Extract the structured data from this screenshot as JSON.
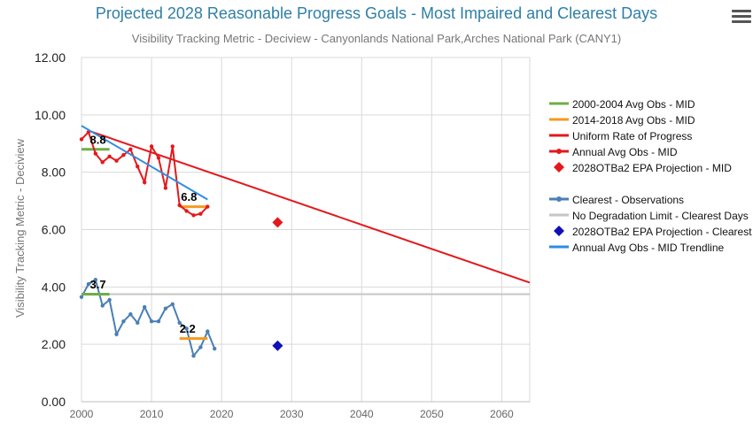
{
  "chart_data": {
    "type": "line",
    "title": "Projected 2028 Reasonable Progress Goals - Most Impaired and Clearest Days",
    "subtitle": "Visibility Tracking Metric - Deciview - Canyonlands National Park,Arches National Park (CANY1)",
    "ylabel": "Visibility Tracking Metric - Deciview",
    "xlabel": "",
    "xlim": [
      2000,
      2064
    ],
    "ylim": [
      0,
      12
    ],
    "xticks": [
      2000,
      2010,
      2020,
      2030,
      2040,
      2050,
      2060
    ],
    "yticks": [
      "0.00",
      "2.00",
      "4.00",
      "6.00",
      "8.00",
      "10.00",
      "12.00"
    ],
    "grid": true,
    "legend_position": "right",
    "series": [
      {
        "name": "2000-2004 Avg Obs - MID",
        "color": "#70ad47",
        "kind": "segment",
        "x": [
          2000,
          2004
        ],
        "y": [
          8.8,
          8.8
        ]
      },
      {
        "name": "2014-2018 Avg Obs - MID",
        "color": "#f79a1e",
        "kind": "segment",
        "x": [
          2014,
          2018
        ],
        "y": [
          6.8,
          6.8
        ]
      },
      {
        "name": "Uniform Rate of Progress",
        "color": "#e3191c",
        "kind": "line",
        "x": [
          2001,
          2064
        ],
        "y": [
          9.45,
          4.15
        ]
      },
      {
        "name": "Annual Avg Obs - MID",
        "color": "#e3191c",
        "kind": "line-markers",
        "x": [
          2000,
          2001,
          2002,
          2003,
          2004,
          2005,
          2006,
          2007,
          2008,
          2009,
          2010,
          2011,
          2012,
          2013,
          2014,
          2015,
          2016,
          2017,
          2018
        ],
        "y": [
          9.15,
          9.4,
          8.65,
          8.35,
          8.55,
          8.4,
          8.6,
          8.8,
          8.2,
          7.65,
          8.9,
          8.5,
          7.45,
          8.9,
          6.85,
          6.65,
          6.5,
          6.55,
          6.8
        ]
      },
      {
        "name": "2028OTBa2 EPA Projection - MID",
        "color": "#e3191c",
        "kind": "diamond",
        "x": [
          2028
        ],
        "y": [
          6.25
        ]
      },
      {
        "name": "Clearest - Observations",
        "color": "#4a7fb5",
        "kind": "line-markers",
        "x": [
          2000,
          2001,
          2002,
          2003,
          2004,
          2005,
          2006,
          2007,
          2008,
          2009,
          2010,
          2011,
          2012,
          2013,
          2014,
          2015,
          2016,
          2017,
          2018,
          2019
        ],
        "y": [
          3.65,
          4.1,
          4.25,
          3.35,
          3.55,
          2.35,
          2.8,
          3.05,
          2.75,
          3.3,
          2.8,
          2.8,
          3.25,
          3.4,
          2.75,
          2.55,
          1.6,
          1.9,
          2.45,
          1.85
        ]
      },
      {
        "name": "No Degradation Limit - Clearest Days",
        "color": "#c6c6c6",
        "kind": "line",
        "x": [
          2000,
          2064
        ],
        "y": [
          3.75,
          3.75
        ]
      },
      {
        "name": "2028OTBa2 EPA Projection - Clearest",
        "color": "#1010b8",
        "kind": "diamond",
        "x": [
          2028
        ],
        "y": [
          1.95
        ]
      },
      {
        "name": "Annual Avg Obs - MID Trendline",
        "color": "#2f8ee0",
        "kind": "line",
        "x": [
          2000,
          2018
        ],
        "y": [
          9.62,
          7.05
        ]
      },
      {
        "name": "",
        "color": "#70ad47",
        "kind": "segment",
        "x": [
          2000,
          2004
        ],
        "y": [
          3.75,
          3.75
        ]
      },
      {
        "name": "",
        "color": "#f79a1e",
        "kind": "segment",
        "x": [
          2014,
          2018
        ],
        "y": [
          2.2,
          2.2
        ]
      }
    ],
    "annotations": [
      {
        "text": "8.8",
        "x": 2001.2,
        "y": 9.0
      },
      {
        "text": "6.8",
        "x": 2014.2,
        "y": 7.0
      },
      {
        "text": "3.7",
        "x": 2001.2,
        "y": 3.95
      },
      {
        "text": "2.2",
        "x": 2014.0,
        "y": 2.4
      }
    ],
    "legend": [
      {
        "label": "2000-2004 Avg Obs - MID",
        "color": "#70ad47",
        "marker": "line"
      },
      {
        "label": "2014-2018 Avg Obs - MID",
        "color": "#f79a1e",
        "marker": "line"
      },
      {
        "label": "Uniform Rate of Progress",
        "color": "#e3191c",
        "marker": "line"
      },
      {
        "label": "Annual Avg Obs - MID",
        "color": "#e3191c",
        "marker": "line-dot"
      },
      {
        "label": "2028OTBa2 EPA Projection - MID",
        "color": "#e3191c",
        "marker": "diamond"
      },
      {
        "label": "",
        "color": "",
        "marker": "gap"
      },
      {
        "label": "Clearest - Observations",
        "color": "#4a7fb5",
        "marker": "line-dot"
      },
      {
        "label": "No Degradation Limit - Clearest Days",
        "color": "#c6c6c6",
        "marker": "line"
      },
      {
        "label": "2028OTBa2 EPA Projection - Clearest",
        "color": "#1010b8",
        "marker": "diamond"
      },
      {
        "label": "Annual Avg Obs - MID Trendline",
        "color": "#2f8ee0",
        "marker": "line"
      }
    ]
  },
  "toolbar": {
    "menu_icon": "hamburger-menu-icon"
  }
}
